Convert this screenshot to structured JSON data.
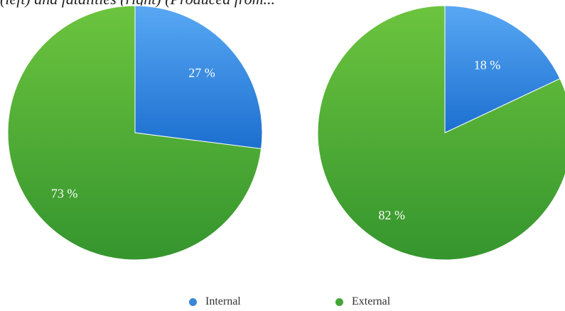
{
  "caption": "(left) and fatalities (right) (Produced from...",
  "chart_data": [
    {
      "type": "pie",
      "slices": [
        {
          "label": "Internal",
          "value": 27,
          "display": "27 %"
        },
        {
          "label": "External",
          "value": 73,
          "display": "73 %"
        }
      ]
    },
    {
      "type": "pie",
      "slices": [
        {
          "label": "Internal",
          "value": 18,
          "display": "18 %"
        },
        {
          "label": "External",
          "value": 82,
          "display": "82 %"
        }
      ]
    }
  ],
  "legend": {
    "placement": "bottom",
    "items": [
      {
        "label": "Internal",
        "color": "#3a86d8"
      },
      {
        "label": "External",
        "color": "#43a535"
      }
    ]
  },
  "colors": {
    "internal_light": "#58a8f4",
    "internal_dark": "#1c6fcf",
    "external_light": "#6cc43e",
    "external_dark": "#35952e"
  }
}
